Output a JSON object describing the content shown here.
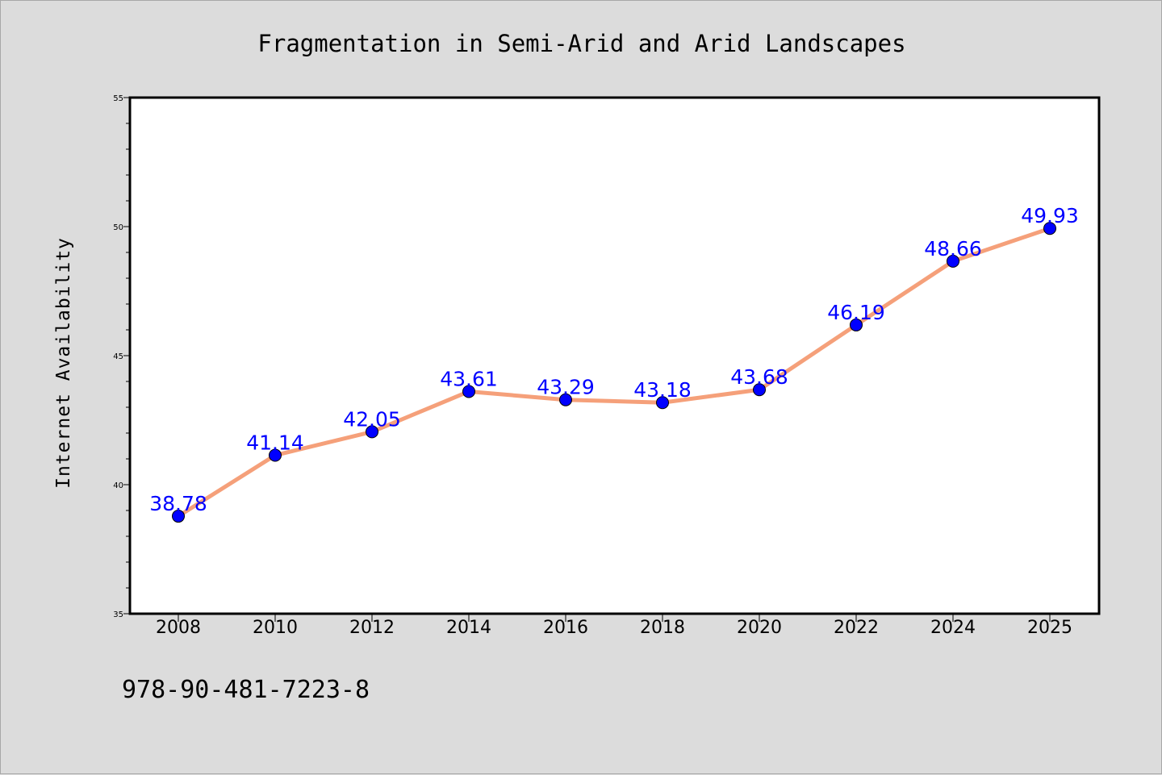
{
  "chart_data": {
    "type": "line",
    "title": "Fragmentation in Semi-Arid and Arid Landscapes",
    "xlabel": "",
    "ylabel": "Internet Availability",
    "categories": [
      "2008",
      "2010",
      "2012",
      "2014",
      "2016",
      "2018",
      "2020",
      "2022",
      "2024",
      "2025"
    ],
    "series": [
      {
        "values": [
          38.78,
          41.14,
          42.05,
          43.61,
          43.29,
          43.18,
          43.68,
          46.19,
          48.66,
          49.93
        ],
        "data_labels": [
          "38.78",
          "41.14",
          "42.05",
          "43.61",
          "43.29",
          "43.18",
          "43.68",
          "46.19",
          "48.66",
          "49.93"
        ]
      }
    ],
    "ylim": [
      35,
      55
    ],
    "yticks": [
      "35",
      "40",
      "45",
      "50",
      "55"
    ],
    "grid": false,
    "legend": "none",
    "colors": {
      "line": "#f5a07a",
      "marker": "#0000ff",
      "data_label": "#0000ff",
      "plot_background": "#ffffff",
      "page_background": "#dcdcdc"
    }
  },
  "footer": {
    "isbn": "978-90-481-7223-8"
  }
}
